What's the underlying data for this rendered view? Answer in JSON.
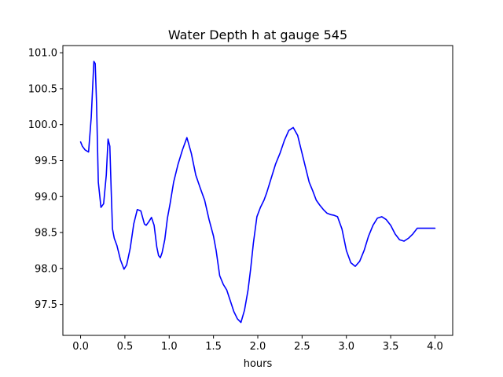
{
  "chart_data": {
    "type": "line",
    "title": "Water Depth h at gauge 545",
    "xlabel": "hours",
    "ylabel": "",
    "xlim": [
      -0.2,
      4.2
    ],
    "ylim": [
      97.07,
      101.1
    ],
    "x_ticks": [
      0.0,
      0.5,
      1.0,
      1.5,
      2.0,
      2.5,
      3.0,
      3.5,
      4.0
    ],
    "x_tick_labels": [
      "0.0",
      "0.5",
      "1.0",
      "1.5",
      "2.0",
      "2.5",
      "3.0",
      "3.5",
      "4.0"
    ],
    "y_ticks": [
      97.5,
      98.0,
      98.5,
      99.0,
      99.5,
      100.0,
      100.5,
      101.0
    ],
    "y_tick_labels": [
      "97.5",
      "98.0",
      "98.5",
      "99.0",
      "99.5",
      "100.0",
      "100.5",
      "101.0"
    ],
    "grid": false,
    "series": [
      {
        "color": "#0000ff",
        "x": [
          0.0,
          0.02,
          0.05,
          0.09,
          0.12,
          0.15,
          0.165,
          0.18,
          0.2,
          0.23,
          0.26,
          0.29,
          0.31,
          0.33,
          0.345,
          0.36,
          0.38,
          0.41,
          0.45,
          0.49,
          0.52,
          0.56,
          0.6,
          0.64,
          0.68,
          0.72,
          0.74,
          0.77,
          0.8,
          0.83,
          0.86,
          0.88,
          0.9,
          0.92,
          0.95,
          0.98,
          1.01,
          1.05,
          1.1,
          1.15,
          1.2,
          1.25,
          1.3,
          1.35,
          1.4,
          1.45,
          1.5,
          1.53,
          1.57,
          1.61,
          1.65,
          1.69,
          1.73,
          1.77,
          1.81,
          1.85,
          1.89,
          1.92,
          1.95,
          1.99,
          2.03,
          2.07,
          2.1,
          2.15,
          2.2,
          2.25,
          2.3,
          2.35,
          2.4,
          2.45,
          2.5,
          2.54,
          2.58,
          2.62,
          2.66,
          2.7,
          2.74,
          2.78,
          2.82,
          2.86,
          2.9,
          2.95,
          3.0,
          3.05,
          3.1,
          3.15,
          3.2,
          3.25,
          3.3,
          3.35,
          3.4,
          3.45,
          3.5,
          3.55,
          3.6,
          3.65,
          3.7,
          3.75,
          3.8,
          3.85,
          3.9,
          3.95,
          4.0
        ],
        "y": [
          99.76,
          99.7,
          99.65,
          99.62,
          100.1,
          100.88,
          100.85,
          100.3,
          99.2,
          98.85,
          98.9,
          99.3,
          99.8,
          99.7,
          99.1,
          98.55,
          98.42,
          98.32,
          98.12,
          97.99,
          98.05,
          98.28,
          98.62,
          98.82,
          98.8,
          98.62,
          98.6,
          98.65,
          98.71,
          98.6,
          98.3,
          98.18,
          98.15,
          98.22,
          98.4,
          98.7,
          98.9,
          99.2,
          99.45,
          99.65,
          99.82,
          99.6,
          99.3,
          99.12,
          98.95,
          98.68,
          98.45,
          98.25,
          97.9,
          97.78,
          97.7,
          97.55,
          97.4,
          97.3,
          97.25,
          97.42,
          97.7,
          98.0,
          98.35,
          98.72,
          98.85,
          98.95,
          99.05,
          99.25,
          99.45,
          99.6,
          99.78,
          99.92,
          99.96,
          99.85,
          99.6,
          99.4,
          99.2,
          99.08,
          98.95,
          98.88,
          98.82,
          98.77,
          98.75,
          98.74,
          98.72,
          98.55,
          98.25,
          98.08,
          98.03,
          98.1,
          98.25,
          98.45,
          98.6,
          98.7,
          98.72,
          98.68,
          98.6,
          98.48,
          98.4,
          98.38,
          98.42,
          98.48,
          98.56,
          98.56,
          98.56,
          98.56,
          98.56
        ]
      }
    ]
  }
}
